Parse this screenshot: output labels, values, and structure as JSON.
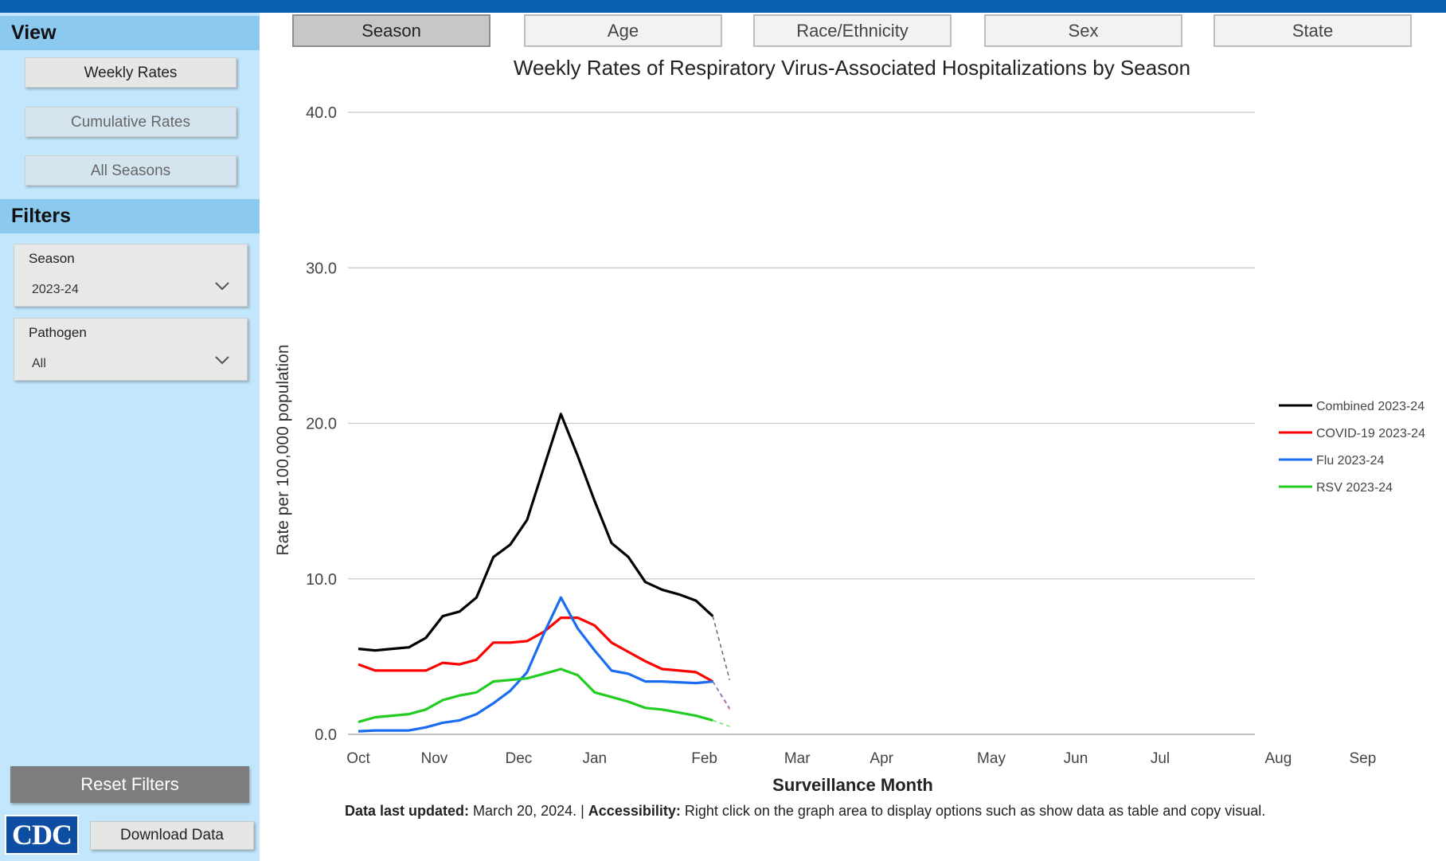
{
  "sidebar": {
    "view_heading": "View",
    "view_buttons": [
      "Weekly Rates",
      "Cumulative Rates",
      "All Seasons"
    ],
    "filters_heading": "Filters",
    "filters": [
      {
        "label": "Season",
        "value": "2023-24"
      },
      {
        "label": "Pathogen",
        "value": "All"
      }
    ],
    "reset_label": "Reset Filters",
    "download_label": "Download Data",
    "logo_text": "CDC"
  },
  "tabs": [
    "Season",
    "Age",
    "Race/Ethnicity",
    "Sex",
    "State"
  ],
  "active_tab": "Season",
  "footnote": {
    "updated_label": "Data last updated:",
    "updated_value": " March 20, 2024. | ",
    "access_label": "Accessibility:",
    "access_value": " Right click on the graph area to display options such as show data as table and copy visual."
  },
  "chart_data": {
    "type": "line",
    "title": "Weekly Rates of Respiratory Virus-Associated Hospitalizations by Season",
    "xlabel": "Surveillance Month",
    "ylabel": "Rate per 100,000 population",
    "ylim": [
      0,
      40
    ],
    "yticks": [
      "0.0",
      "10.0",
      "20.0",
      "30.0",
      "40.0"
    ],
    "xticks": [
      "Oct",
      "Nov",
      "Dec",
      "Jan",
      "Feb",
      "Mar",
      "Apr",
      "May",
      "Jun",
      "Jul",
      "Aug",
      "Sep"
    ],
    "xtick_week": [
      1,
      5.5,
      10.5,
      15,
      21.5,
      27,
      32,
      38.5,
      43.5,
      48.5,
      55.5,
      60.5
    ],
    "weeks_total": 64,
    "grid": true,
    "legend_position": "right",
    "series": [
      {
        "name": "Combined 2023-24",
        "color": "#000000",
        "values": [
          5.5,
          5.4,
          5.5,
          5.6,
          6.2,
          7.6,
          7.9,
          8.8,
          11.4,
          12.2,
          13.8,
          17.2,
          20.6,
          17.9,
          15.0,
          12.3,
          11.4,
          9.8,
          9.3,
          9.0,
          8.6,
          7.6
        ],
        "projection": [
          3.5
        ]
      },
      {
        "name": "COVID-19 2023-24",
        "color": "#ff0000",
        "values": [
          4.5,
          4.1,
          4.1,
          4.1,
          4.1,
          4.6,
          4.5,
          4.8,
          5.9,
          5.9,
          6.0,
          6.6,
          7.5,
          7.5,
          7.0,
          5.9,
          5.3,
          4.7,
          4.2,
          4.1,
          4.0,
          3.4
        ],
        "projection": [
          1.6
        ]
      },
      {
        "name": "Flu 2023-24",
        "color": "#1a6cf0",
        "values": [
          0.2,
          0.25,
          0.25,
          0.25,
          0.45,
          0.75,
          0.9,
          1.3,
          2.0,
          2.8,
          4.0,
          6.5,
          8.8,
          6.8,
          5.4,
          4.1,
          3.9,
          3.4,
          3.4,
          3.35,
          3.3,
          3.4
        ],
        "projection": [
          1.7
        ]
      },
      {
        "name": "RSV 2023-24",
        "color": "#22cc22",
        "values": [
          0.8,
          1.1,
          1.2,
          1.3,
          1.6,
          2.2,
          2.5,
          2.7,
          3.4,
          3.5,
          3.6,
          3.9,
          4.2,
          3.8,
          2.7,
          2.4,
          2.1,
          1.7,
          1.6,
          1.4,
          1.2,
          0.9
        ],
        "projection": [
          0.5
        ]
      }
    ]
  }
}
